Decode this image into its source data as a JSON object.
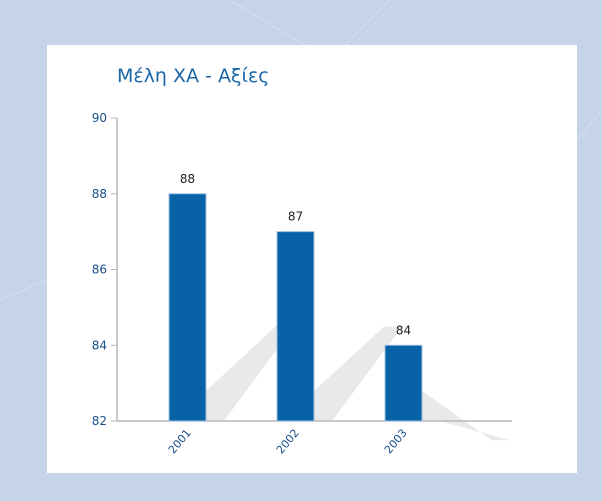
{
  "chart_data": {
    "type": "bar",
    "title": "Μέλη ΧΑ - Αξίες",
    "categories": [
      "2001",
      "2002",
      "2003"
    ],
    "values": [
      88,
      87,
      84
    ],
    "xlabel": "",
    "ylabel": "",
    "ylim": [
      82,
      90
    ],
    "yticks": [
      82,
      84,
      86,
      88,
      90
    ],
    "grid": false,
    "legend": "none"
  },
  "colors": {
    "background": "#c6d4e9",
    "panel": "#ffffff",
    "bar": "#0862a8",
    "bar_edge": "#9fc0de",
    "title": "#1b66a9",
    "tick_label": "#1b4f8a",
    "axis": "#b8b8b8",
    "shadow": "#e9e9e9"
  }
}
